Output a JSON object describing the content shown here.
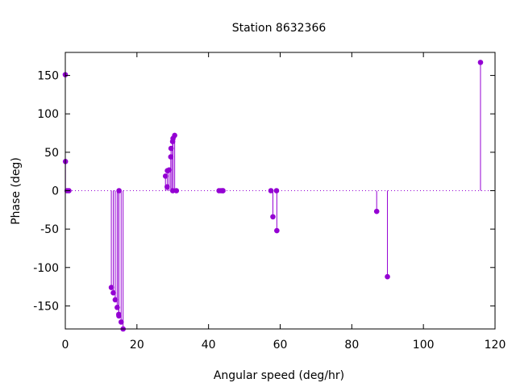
{
  "chart_data": {
    "type": "scatter",
    "style": "impulses-with-points",
    "title": "Station 8632366",
    "xlabel": "Angular speed (deg/hr)",
    "ylabel": "Phase (deg)",
    "xlim": [
      0,
      120
    ],
    "ylim": [
      -180,
      180
    ],
    "xticks": [
      0,
      20,
      40,
      60,
      80,
      100,
      120
    ],
    "yticks": [
      -150,
      -100,
      -50,
      0,
      50,
      100,
      150
    ],
    "grid": false,
    "legend": "none",
    "color": "#9400d3",
    "x": [
      0.0,
      0.04,
      0.5,
      1.0,
      12.85,
      13.4,
      13.94,
      14.49,
      14.92,
      14.96,
      15.0,
      15.59,
      16.14,
      27.97,
      28.44,
      28.51,
      28.99,
      29.46,
      29.53,
      29.96,
      30.0,
      30.08,
      30.54,
      31.02,
      42.93,
      43.48,
      43.94,
      44.03,
      57.42,
      57.97,
      58.98,
      59.07,
      86.95,
      89.95,
      115.94
    ],
    "y": [
      151,
      38,
      0,
      0,
      -126,
      -133,
      -142,
      -152,
      -161,
      -163,
      0,
      -171,
      -180,
      19,
      5,
      26,
      27,
      44,
      55,
      64,
      0,
      68,
      72,
      0,
      0,
      0,
      0,
      0,
      0,
      -34,
      0,
      -52,
      -27,
      -112,
      167
    ]
  }
}
